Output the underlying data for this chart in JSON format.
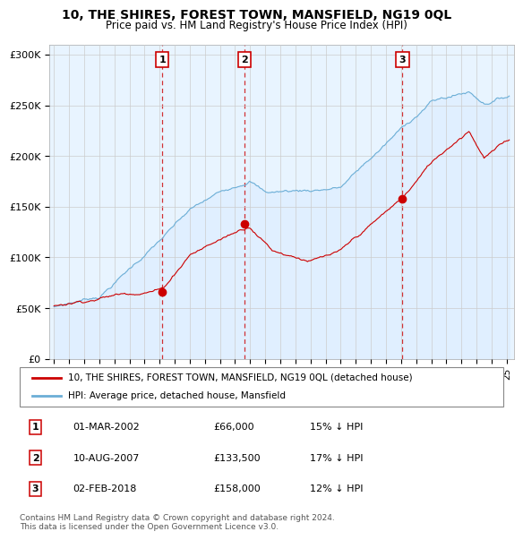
{
  "title": "10, THE SHIRES, FOREST TOWN, MANSFIELD, NG19 0QL",
  "subtitle": "Price paid vs. HM Land Registry's House Price Index (HPI)",
  "ylabel_ticks": [
    "£0",
    "£50K",
    "£100K",
    "£150K",
    "£200K",
    "£250K",
    "£300K"
  ],
  "ytick_vals": [
    0,
    50000,
    100000,
    150000,
    200000,
    250000,
    300000
  ],
  "ylim": [
    0,
    310000
  ],
  "xlim": [
    1994.7,
    2025.5
  ],
  "sale_dates_num": [
    2002.17,
    2007.61,
    2018.09
  ],
  "sale_prices": [
    66000,
    133500,
    158000
  ],
  "sale_labels": [
    "1",
    "2",
    "3"
  ],
  "legend_entries": [
    "10, THE SHIRES, FOREST TOWN, MANSFIELD, NG19 0QL (detached house)",
    "HPI: Average price, detached house, Mansfield"
  ],
  "table_rows": [
    [
      "1",
      "01-MAR-2002",
      "£66,000",
      "15% ↓ HPI"
    ],
    [
      "2",
      "10-AUG-2007",
      "£133,500",
      "17% ↓ HPI"
    ],
    [
      "3",
      "02-FEB-2018",
      "£158,000",
      "12% ↓ HPI"
    ]
  ],
  "footnote": "Contains HM Land Registry data © Crown copyright and database right 2024.\nThis data is licensed under the Open Government Licence v3.0.",
  "hpi_color": "#6baed6",
  "sale_color": "#cc0000",
  "fill_color": "#ddeeff",
  "grid_color": "#cccccc",
  "background_color": "#ffffff",
  "chart_bg_color": "#e8f4ff"
}
